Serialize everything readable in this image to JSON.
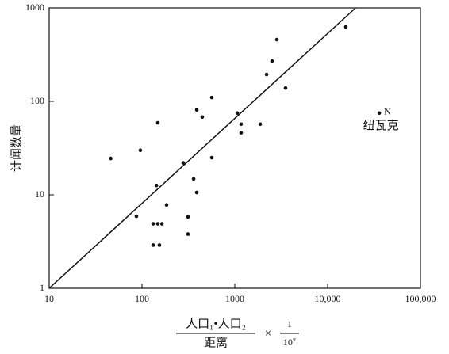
{
  "chart_data": {
    "type": "scatter",
    "y_label": "计闻数量",
    "x_label_numerator": "人口₁•人口₂",
    "x_label_denominator": "距离",
    "x_label_times": "×",
    "x_label_factor_numerator": "1",
    "x_label_factor_denominator": "10⁷",
    "log_x": true,
    "log_y": true,
    "xlim": [
      10,
      100000
    ],
    "ylim": [
      1,
      1000
    ],
    "xticks": [
      10,
      100,
      1000,
      {
        "value": 10000,
        "label": "10,000"
      },
      {
        "value": 100000,
        "label": "100,000"
      }
    ],
    "yticks": [
      1,
      10,
      100,
      1000
    ],
    "color": "#111111",
    "x": [
      46,
      96,
      148,
      143,
      184,
      87,
      132,
      148,
      164,
      132,
      154,
      278,
      389,
      446,
      565,
      360,
      389,
      313,
      313,
      565,
      1062,
      1170,
      1170,
      1880,
      2200,
      2520,
      2840,
      3520,
      15700,
      36000
    ],
    "y": [
      24.5,
      30,
      59,
      12.6,
      7.8,
      5.9,
      4.9,
      4.9,
      4.9,
      2.9,
      2.9,
      22,
      81,
      68,
      110,
      14.8,
      10.6,
      5.8,
      3.8,
      25,
      75,
      57,
      46,
      57,
      194,
      270,
      458,
      139,
      626,
      75
    ],
    "fit_line": {
      "x": [
        10,
        20000
      ],
      "y": [
        1,
        1000
      ]
    },
    "annotations": [
      {
        "text": "N",
        "x": 36000,
        "y": 75
      },
      {
        "text": "纽瓦克",
        "x": 36000,
        "y": 75
      }
    ]
  }
}
